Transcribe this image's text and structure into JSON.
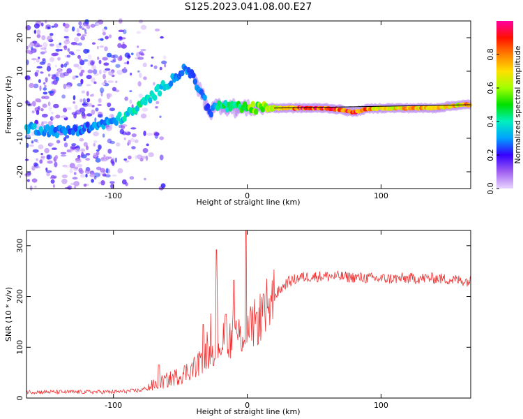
{
  "title": "S125.2023.041.08.00.E27",
  "chart_data": [
    {
      "type": "heatmap",
      "xlabel": "Height of straight line (km)",
      "ylabel": "Frequency (Hz)",
      "xlim": [
        -165,
        167
      ],
      "ylim": [
        -25,
        25
      ],
      "xticks": [
        -100,
        0,
        100
      ],
      "yticks": [
        -20,
        -10,
        0,
        10,
        20
      ],
      "colorbar": {
        "label": "Normalized spectral amplitude",
        "range": [
          0,
          1
        ],
        "ticks": [
          0.0,
          0.2,
          0.4,
          0.6,
          0.8
        ],
        "colormap": [
          "#e9d6ff",
          "#a060f0",
          "#3500ff",
          "#00a0ff",
          "#00f0c0",
          "#00e000",
          "#a0ff00",
          "#ffe000",
          "#ff8000",
          "#ff1000",
          "#ff00a0"
        ]
      },
      "ridge": {
        "x": [
          -160,
          -140,
          -120,
          -100,
          -85,
          -70,
          -55,
          -45,
          -35,
          -28,
          -20,
          -10,
          0,
          20,
          40,
          60,
          70,
          80,
          90,
          100,
          120,
          140,
          160,
          167
        ],
        "freq": [
          -7,
          -8,
          -7,
          -5,
          -2,
          3,
          8,
          11,
          4,
          -2,
          0,
          -1,
          -1,
          -1,
          -1,
          -1,
          -1.5,
          -2.2,
          -1.2,
          -1,
          -1,
          -1,
          0,
          0
        ],
        "amp": [
          0.35,
          0.3,
          0.3,
          0.35,
          0.45,
          0.4,
          0.35,
          0.3,
          0.3,
          0.3,
          0.45,
          0.5,
          0.6,
          0.7,
          0.95,
          0.95,
          0.9,
          0.95,
          0.85,
          0.75,
          0.8,
          0.8,
          0.75,
          0.9
        ]
      }
    },
    {
      "type": "line",
      "xlabel": "Height of straight line (km)",
      "ylabel": "SNR (10 * v/v)",
      "xlim": [
        -165,
        167
      ],
      "ylim": [
        0,
        330
      ],
      "xticks": [
        -100,
        0,
        100
      ],
      "yticks": [
        0,
        100,
        200,
        300
      ],
      "color": "#ee3333",
      "envelope": {
        "x": [
          -165,
          -100,
          -80,
          -70,
          -60,
          -50,
          -40,
          -30,
          -20,
          -10,
          0,
          10,
          20,
          30,
          40,
          60,
          100,
          140,
          167
        ],
        "y": [
          12,
          12,
          15,
          25,
          35,
          45,
          60,
          85,
          110,
          120,
          130,
          160,
          200,
          228,
          238,
          240,
          235,
          236,
          230
        ]
      },
      "spikes": [
        {
          "x": -66,
          "y": 65
        },
        {
          "x": -33,
          "y": 145
        },
        {
          "x": -23,
          "y": 292
        },
        {
          "x": -16,
          "y": 165
        },
        {
          "x": -10,
          "y": 232
        },
        {
          "x": -1,
          "y": 330
        },
        {
          "x": 12,
          "y": 205
        }
      ]
    }
  ]
}
